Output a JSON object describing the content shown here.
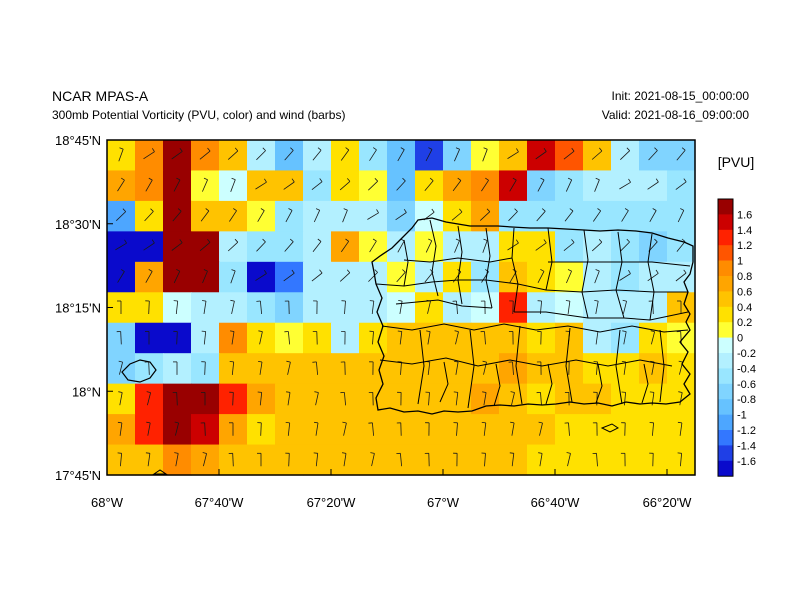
{
  "header": {
    "model": "NCAR MPAS-A",
    "description": "300mb Potential Vorticity (PVU, color) and wind (barbs)",
    "init": "Init: 2021-08-15_00:00:00",
    "valid": "Valid: 2021-08-16_09:00:00"
  },
  "axes": {
    "lat_ticks": [
      "18°45'N",
      "18°30'N",
      "18°15'N",
      "18°N",
      "17°45'N"
    ],
    "lon_ticks": [
      "68°W",
      "67°40'W",
      "67°20'W",
      "67°W",
      "66°40'W",
      "66°20'W"
    ]
  },
  "colorbar": {
    "unit": "[PVU]",
    "labels": [
      "1.6",
      "1.4",
      "1.2",
      "1",
      "0.8",
      "0.6",
      "0.4",
      "0.2",
      "0",
      "-0.2",
      "-0.4",
      "-0.6",
      "-0.8",
      "-1",
      "-1.2",
      "-1.4",
      "-1.6"
    ],
    "colors": [
      "#990000",
      "#cc0000",
      "#ff2200",
      "#ff5500",
      "#ff8c00",
      "#ffa500",
      "#ffc300",
      "#ffe100",
      "#ffff33",
      "#ccffff",
      "#b3f0ff",
      "#99e6ff",
      "#80d4ff",
      "#66c2ff",
      "#4da6ff",
      "#3377ff",
      "#1f3fe6",
      "#0a0acc"
    ]
  },
  "colors": {
    "frame": "#000000",
    "coast": "#000000",
    "barb": "#1a1a1a"
  },
  "chart_data": {
    "type": "heatmap",
    "field": "300mb Potential Vorticity",
    "units": "PVU",
    "lon_range": [
      -68.0,
      -66.25
    ],
    "lat_range": [
      17.75,
      18.75
    ],
    "color_range": [
      -1.7,
      1.7
    ],
    "grid": [
      [
        0.3,
        1.0,
        1.8,
        0.9,
        0.6,
        -0.2,
        -0.8,
        -0.2,
        0.3,
        -0.5,
        -0.9,
        -1.4,
        -0.6,
        0.2,
        0.6,
        1.5,
        1.2,
        0.6,
        -0.2,
        -0.6,
        -0.7
      ],
      [
        0.8,
        1.0,
        1.8,
        0.2,
        -0.1,
        0.6,
        0.6,
        -0.4,
        0.3,
        0.2,
        -0.8,
        0.3,
        0.7,
        0.9,
        1.6,
        -0.7,
        -0.4,
        -0.3,
        -0.2,
        -0.3,
        -0.4
      ],
      [
        -1.0,
        0.3,
        1.8,
        0.6,
        0.5,
        0.1,
        -0.4,
        -0.2,
        -0.2,
        -0.3,
        -0.6,
        -0.1,
        0.4,
        0.7,
        -0.5,
        -0.5,
        -0.4,
        -0.5,
        -0.5,
        -0.5,
        -0.5
      ],
      [
        -1.6,
        -1.6,
        1.8,
        1.8,
        -0.3,
        -0.5,
        -0.5,
        -0.3,
        0.8,
        0.1,
        -0.3,
        0.2,
        -0.3,
        -0.2,
        0.3,
        0.4,
        -0.5,
        -0.3,
        -0.4,
        -0.6,
        -0.5
      ],
      [
        -1.6,
        0.8,
        1.8,
        1.8,
        -0.4,
        -1.6,
        -1.3,
        -0.2,
        -0.3,
        -0.3,
        0.2,
        -0.3,
        0.3,
        -0.4,
        0.6,
        0.3,
        0.2,
        -0.3,
        -0.4,
        -0.3,
        -0.2
      ],
      [
        0.3,
        0.3,
        -0.1,
        -0.3,
        -0.2,
        -0.4,
        -0.6,
        -0.3,
        -0.3,
        -0.2,
        -0.1,
        0.3,
        -0.2,
        -0.1,
        1.4,
        -0.2,
        -0.1,
        -0.2,
        -0.3,
        -0.2,
        0.6
      ],
      [
        -0.6,
        -1.6,
        -1.6,
        -0.2,
        0.9,
        0.3,
        0.2,
        0.3,
        -0.2,
        0.4,
        0.5,
        0.6,
        0.6,
        0.5,
        0.5,
        0.4,
        0.5,
        -0.3,
        -0.4,
        0.3,
        0.2
      ],
      [
        -0.6,
        -0.5,
        -0.3,
        -0.5,
        0.6,
        0.6,
        0.6,
        0.5,
        0.6,
        0.6,
        0.5,
        0.6,
        0.6,
        0.6,
        0.7,
        0.6,
        0.5,
        0.3,
        0.3,
        0.5,
        0.4
      ],
      [
        0.3,
        1.3,
        1.8,
        1.8,
        1.3,
        0.7,
        0.6,
        0.6,
        0.6,
        0.6,
        0.6,
        0.6,
        0.6,
        0.7,
        0.5,
        0.4,
        0.5,
        0.5,
        0.4,
        0.3,
        0.3
      ],
      [
        0.7,
        1.3,
        1.8,
        1.5,
        0.7,
        0.3,
        0.6,
        0.6,
        0.6,
        0.6,
        0.6,
        0.6,
        0.6,
        0.6,
        0.6,
        0.6,
        0.4,
        0.3,
        0.3,
        0.3,
        0.3
      ],
      [
        0.6,
        0.6,
        0.9,
        0.7,
        0.6,
        0.6,
        0.6,
        0.6,
        0.6,
        0.6,
        0.6,
        0.6,
        0.6,
        0.6,
        0.5,
        0.4,
        0.3,
        0.3,
        0.4,
        0.3,
        0.3
      ]
    ],
    "title": "300mb Potential Vorticity (PVU, color) and wind (barbs)"
  }
}
